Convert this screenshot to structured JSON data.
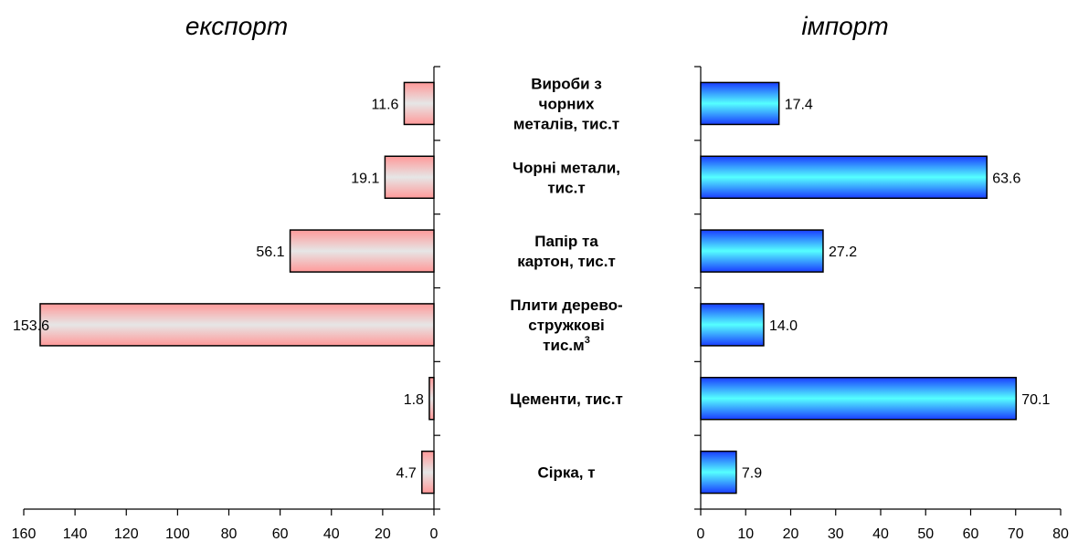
{
  "chart_data": [
    {
      "type": "bar",
      "orientation": "horizontal",
      "direction": "right-to-left",
      "title": "експорт",
      "categories": [
        "Вироби з чорних металів, тис.т",
        "Чорні метали, тис.т",
        "Папір та картон, тис.т",
        "Плити дерево-стружкові тис.м3",
        "Цементи, тис.т",
        "Сірка, т"
      ],
      "values": [
        11.6,
        19.1,
        56.1,
        153.6,
        1.8,
        4.7
      ],
      "value_labels": [
        "11.6",
        "19.1",
        "56.1",
        "153.6",
        "1.8",
        "4.7"
      ],
      "xlim": [
        0,
        160
      ],
      "ticks": [
        "0",
        "20",
        "40",
        "60",
        "80",
        "100",
        "120",
        "140",
        "160"
      ],
      "bar_color": "#ff9999",
      "bar_highlight": "#e6e6e6",
      "grid": false
    },
    {
      "type": "bar",
      "orientation": "horizontal",
      "direction": "left-to-right",
      "title": "імпорт",
      "categories": [
        "Вироби з чорних металів, тис.т",
        "Чорні метали, тис.т",
        "Папір та картон, тис.т",
        "Плити дерево-стружкові тис.м3",
        "Цементи, тис.т",
        "Сірка, т"
      ],
      "values": [
        17.4,
        63.6,
        27.2,
        14.0,
        70.1,
        7.9
      ],
      "value_labels": [
        "17.4",
        "63.6",
        "27.2",
        "14.0",
        "70.1",
        "7.9"
      ],
      "xlim": [
        0,
        80
      ],
      "ticks": [
        "0",
        "10",
        "20",
        "30",
        "40",
        "50",
        "60",
        "70",
        "80"
      ],
      "bar_color": "#1a3cff",
      "bar_highlight": "#55ffff",
      "grid": false
    }
  ],
  "category_labels": [
    {
      "lines": [
        "Вироби з",
        "чорних",
        "металів, тис.т"
      ]
    },
    {
      "lines": [
        "Чорні метали,",
        "тис.т"
      ]
    },
    {
      "lines": [
        "Папір та",
        "картон, тис.т"
      ]
    },
    {
      "lines": [
        "Плити дерево-",
        "стружкові",
        "тис.м"
      ],
      "superscript": "3"
    },
    {
      "lines": [
        "Цементи, тис.т"
      ]
    },
    {
      "lines": [
        "Сірка, т"
      ]
    }
  ]
}
